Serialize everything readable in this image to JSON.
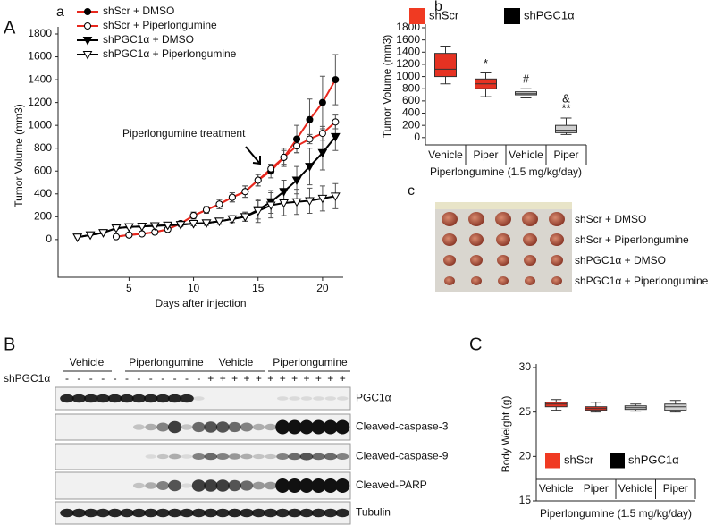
{
  "chart_data": [
    {
      "type": "line",
      "panel_label": "A",
      "title": "a",
      "x_label": "Days after injection",
      "y_label": "Tumor Volume (mm3)",
      "xlim": [
        -0.5,
        21.6
      ],
      "xticks": [
        5,
        10,
        15,
        20
      ],
      "ylim": [
        -330,
        1800
      ],
      "yticks": [
        0,
        200,
        400,
        600,
        800,
        1000,
        1200,
        1400,
        1600,
        1800
      ],
      "annotation": "Piperlongumine treatment",
      "series": [
        {
          "name": "shScr + DMSO",
          "color": "#e8281e",
          "marker": "circle",
          "marker_fill": "#000000",
          "x": [
            4,
            5,
            6,
            7,
            8,
            9,
            10,
            11,
            12,
            13,
            14,
            15,
            16,
            17,
            18,
            19,
            20,
            21
          ],
          "values": [
            25,
            40,
            50,
            65,
            90,
            140,
            210,
            260,
            310,
            370,
            420,
            520,
            600,
            720,
            880,
            1050,
            1200,
            1400
          ],
          "errors": [
            10,
            10,
            10,
            15,
            15,
            20,
            30,
            30,
            40,
            40,
            50,
            50,
            60,
            80,
            120,
            180,
            230,
            220
          ]
        },
        {
          "name": "shScr + Piperlongumine",
          "color": "#e8281e",
          "marker": "circle",
          "marker_fill": "#ffffff",
          "x": [
            4,
            5,
            6,
            7,
            8,
            9,
            10,
            11,
            12,
            13,
            14,
            15,
            16,
            17,
            18,
            19,
            20,
            21
          ],
          "values": [
            25,
            40,
            50,
            65,
            90,
            140,
            210,
            260,
            310,
            370,
            420,
            520,
            620,
            720,
            820,
            880,
            930,
            1030
          ],
          "errors": [
            10,
            10,
            10,
            15,
            15,
            20,
            30,
            30,
            40,
            40,
            50,
            50,
            40,
            60,
            60,
            40,
            60,
            60
          ]
        },
        {
          "name": "shPGC1α + DMSO",
          "color": "#000000",
          "marker": "triangle",
          "marker_fill": "#000000",
          "x": [
            1,
            2,
            3,
            4,
            5,
            6,
            7,
            8,
            9,
            10,
            11,
            12,
            13,
            14,
            15,
            16,
            17,
            18,
            19,
            20,
            21
          ],
          "values": [
            20,
            40,
            60,
            100,
            110,
            115,
            120,
            125,
            130,
            140,
            145,
            160,
            180,
            200,
            260,
            330,
            420,
            520,
            640,
            760,
            900
          ],
          "errors": [
            5,
            5,
            10,
            10,
            10,
            10,
            10,
            15,
            15,
            20,
            20,
            25,
            30,
            40,
            80,
            100,
            100,
            120,
            160,
            150,
            120
          ]
        },
        {
          "name": "shPGC1α + Piperlongumine",
          "color": "#000000",
          "marker": "triangle",
          "marker_fill": "#ffffff",
          "x": [
            1,
            2,
            3,
            4,
            5,
            6,
            7,
            8,
            9,
            10,
            11,
            12,
            13,
            14,
            15,
            16,
            17,
            18,
            19,
            20,
            21
          ],
          "values": [
            20,
            40,
            60,
            100,
            110,
            115,
            120,
            125,
            130,
            140,
            145,
            160,
            180,
            200,
            250,
            300,
            320,
            330,
            340,
            360,
            380
          ],
          "errors": [
            5,
            5,
            10,
            10,
            10,
            10,
            10,
            15,
            15,
            20,
            20,
            25,
            30,
            40,
            100,
            110,
            110,
            110,
            110,
            110,
            110
          ]
        }
      ]
    },
    {
      "type": "box",
      "title": "b",
      "x_label": "Piperlongumine (1.5 mg/kg/day)",
      "y_label": "Tumor Volume (mm3)",
      "ylim": [
        -120,
        1800
      ],
      "yticks": [
        0,
        200,
        400,
        600,
        800,
        1000,
        1200,
        1400,
        1600,
        1800
      ],
      "categories": [
        "Vehicle",
        "Piper",
        "Vehicle",
        "Piper"
      ],
      "legend": [
        {
          "name": "shScr",
          "color": "#f03a22"
        },
        {
          "name": "shPGC1α",
          "color": "#000000"
        }
      ],
      "box_colors": [
        "#e63222",
        "#e63222",
        "#cfcfcf",
        "#cfcfcf"
      ],
      "boxes": [
        {
          "min": 880,
          "q1": 1000,
          "median": 1120,
          "q3": 1380,
          "max": 1500
        },
        {
          "min": 670,
          "q1": 800,
          "median": 880,
          "q3": 960,
          "max": 1060
        },
        {
          "min": 650,
          "q1": 700,
          "median": 720,
          "q3": 750,
          "max": 800
        },
        {
          "min": 50,
          "q1": 80,
          "median": 120,
          "q3": 200,
          "max": 320
        }
      ],
      "annotations": [
        null,
        [
          "*"
        ],
        [
          "#"
        ],
        [
          "&",
          "**"
        ]
      ]
    },
    {
      "type": "box",
      "panel_label": "C",
      "x_label": "Piperlongumine (1.5 mg/kg/day)",
      "y_label": "Body Weight (g)",
      "ylim": [
        15,
        30
      ],
      "yticks": [
        15,
        20,
        25,
        30
      ],
      "categories": [
        "Vehicle",
        "Piper",
        "Vehicle",
        "Piper"
      ],
      "legend": [
        {
          "name": "shScr",
          "color": "#f03a22"
        },
        {
          "name": "shPGC1α",
          "color": "#000000"
        }
      ],
      "box_colors": [
        "#e63222",
        "#e63222",
        "#cfcfcf",
        "#cfcfcf"
      ],
      "boxes": [
        {
          "min": 25.2,
          "q1": 25.6,
          "median": 25.9,
          "q3": 26.1,
          "max": 26.4
        },
        {
          "min": 25.0,
          "q1": 25.2,
          "median": 25.4,
          "q3": 25.6,
          "max": 26.1
        },
        {
          "min": 25.1,
          "q1": 25.3,
          "median": 25.5,
          "q3": 25.7,
          "max": 25.9
        },
        {
          "min": 25.0,
          "q1": 25.2,
          "median": 25.6,
          "q3": 25.9,
          "max": 26.3
        }
      ]
    }
  ],
  "photo_panel": {
    "panel_label": "c",
    "rows": [
      "shScr + DMSO",
      "shScr + Piperlongumine",
      "shPGC1α + DMSO",
      "shPGC1α + Piperlongumine"
    ]
  },
  "western_blot": {
    "panel_label": "B",
    "groups": [
      "Vehicle",
      "Piperlongumine",
      "Vehicle",
      "Piperlongumine"
    ],
    "genotype_label": "shPGC1α",
    "genotype": [
      "-",
      "-",
      "-",
      "-",
      "-",
      "-",
      "-",
      "-",
      "-",
      "-",
      "-",
      "-",
      "+",
      "+",
      "+",
      "+",
      "+",
      "+",
      "+",
      "+",
      "+",
      "+",
      "+",
      "+"
    ],
    "bands": [
      "PGC1α",
      "Cleaved-caspase-3",
      "Cleaved-caspase-9",
      "Cleaved-PARP",
      "Tubulin"
    ]
  }
}
